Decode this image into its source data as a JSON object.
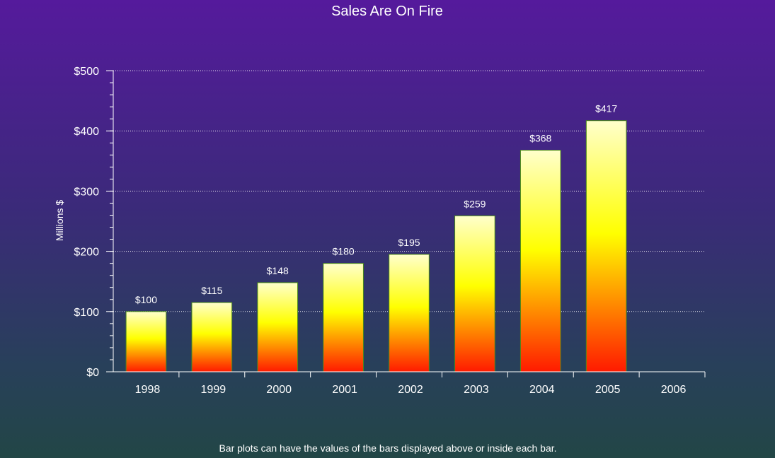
{
  "chart_data": {
    "type": "bar",
    "title": "Sales Are On Fire",
    "ylabel": "Millions $",
    "xlabel": "",
    "caption": "Bar plots can have the values of the bars displayed above or inside each bar.",
    "categories": [
      "1998",
      "1999",
      "2000",
      "2001",
      "2002",
      "2003",
      "2004",
      "2005"
    ],
    "values": [
      100,
      115,
      148,
      180,
      195,
      259,
      368,
      417
    ],
    "value_labels": [
      "$100",
      "$115",
      "$148",
      "$180",
      "$195",
      "$259",
      "$368",
      "$417"
    ],
    "x_tick_labels": [
      "1998",
      "1999",
      "2000",
      "2001",
      "2002",
      "2003",
      "2004",
      "2005",
      "2006"
    ],
    "y_ticks": [
      0,
      100,
      200,
      300,
      400,
      500
    ],
    "y_tick_labels": [
      "$0",
      "$100",
      "$200",
      "$300",
      "$400",
      "$500"
    ],
    "ylim": [
      0,
      500
    ],
    "grid": true,
    "grid_style": "dotted",
    "colors": {
      "bar_bottom": "#ff1a00",
      "bar_middle": "#ffff00",
      "bar_top": "#ffffcc",
      "bar_outline": "#4a8a1a",
      "axis": "#ffffff",
      "grid": "#ffffff"
    }
  }
}
